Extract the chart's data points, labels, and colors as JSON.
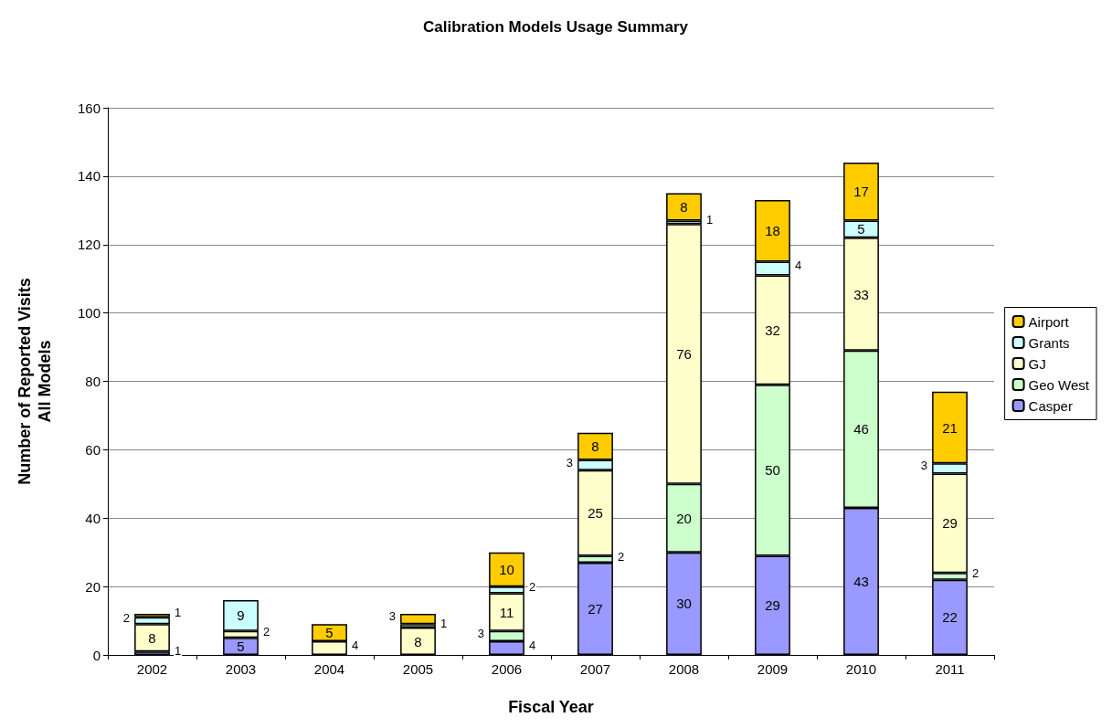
{
  "chart_data": {
    "type": "bar",
    "title": "Calibration Models Usage Summary",
    "xlabel": "Fiscal Year",
    "ylabel": "Number of Reported Visits\nAll Models",
    "categories": [
      "2002",
      "2003",
      "2004",
      "2005",
      "2006",
      "2007",
      "2008",
      "2009",
      "2010",
      "2011"
    ],
    "stacked": true,
    "data_labels": true,
    "grid": "y",
    "legend": "right",
    "ylim": [
      0,
      160
    ],
    "yticks": [
      0,
      20,
      40,
      60,
      80,
      100,
      120,
      140,
      160
    ],
    "series": [
      {
        "name": "Casper",
        "color": "#9999ff",
        "values": [
          1,
          5,
          null,
          null,
          4,
          27,
          30,
          29,
          43,
          22
        ]
      },
      {
        "name": "Geo West",
        "color": "#ccffcc",
        "values": [
          null,
          null,
          null,
          null,
          3,
          2,
          20,
          50,
          46,
          2
        ]
      },
      {
        "name": "GJ",
        "color": "#ffffcc",
        "values": [
          8,
          2,
          4,
          8,
          11,
          25,
          76,
          32,
          33,
          29
        ]
      },
      {
        "name": "Grants",
        "color": "#ccffff",
        "values": [
          2,
          9,
          null,
          1,
          2,
          3,
          1,
          4,
          5,
          3
        ]
      },
      {
        "name": "Airport",
        "color": "#ffcc00",
        "values": [
          1,
          null,
          5,
          3,
          10,
          8,
          8,
          18,
          17,
          21
        ]
      }
    ]
  }
}
